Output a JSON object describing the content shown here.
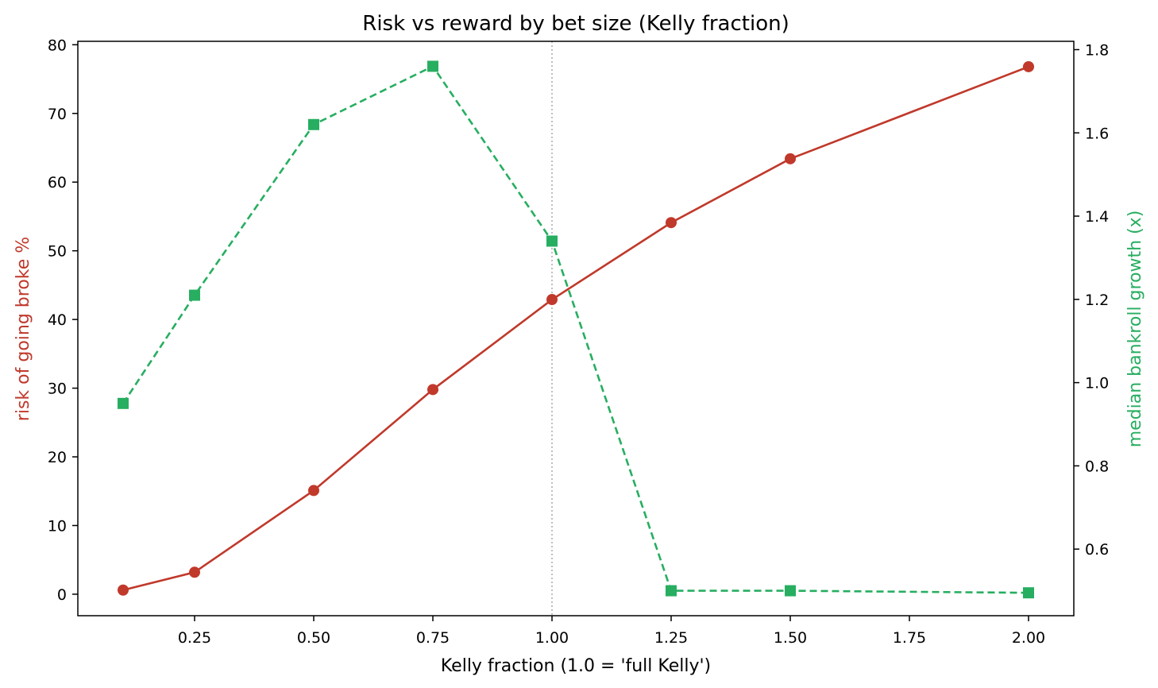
{
  "chart_data": {
    "type": "line",
    "title": "Risk vs reward by bet size (Kelly fraction)",
    "xlabel": "Kelly fraction  (1.0 = 'full Kelly')",
    "ylabel_left": "risk of going broke %",
    "ylabel_right": "median bankroll growth (x)",
    "x": [
      0.1,
      0.25,
      0.5,
      0.75,
      1.0,
      1.25,
      1.5,
      2.0
    ],
    "xlim": [
      0.005,
      2.095
    ],
    "ylim_left": [
      -3.13,
      80.5
    ],
    "ylim_right": [
      0.44,
      1.82
    ],
    "x_ticks": [
      "0.25",
      "0.50",
      "0.75",
      "1.00",
      "1.25",
      "1.50",
      "1.75",
      "2.00"
    ],
    "y_left_ticks": [
      "0",
      "10",
      "20",
      "30",
      "40",
      "50",
      "60",
      "70",
      "80"
    ],
    "y_right_ticks": [
      "0.6",
      "0.8",
      "1.0",
      "1.2",
      "1.4",
      "1.6",
      "1.8"
    ],
    "reference_line_x": 1.0,
    "grid": false,
    "series": [
      {
        "axis": "left",
        "color": "#c0392b",
        "marker": "circle",
        "style": "solid",
        "values": [
          0.6,
          3.2,
          15.1,
          29.8,
          42.9,
          54.1,
          63.4,
          76.8
        ]
      },
      {
        "axis": "right",
        "color": "#27ae60",
        "marker": "square",
        "style": "dashed",
        "values": [
          0.95,
          1.21,
          1.62,
          1.76,
          1.34,
          0.5,
          0.5,
          0.495
        ]
      }
    ],
    "colors": {
      "left_label": "#c0392b",
      "right_label": "#27ae60",
      "reference_line": "#aaaaaa"
    }
  }
}
